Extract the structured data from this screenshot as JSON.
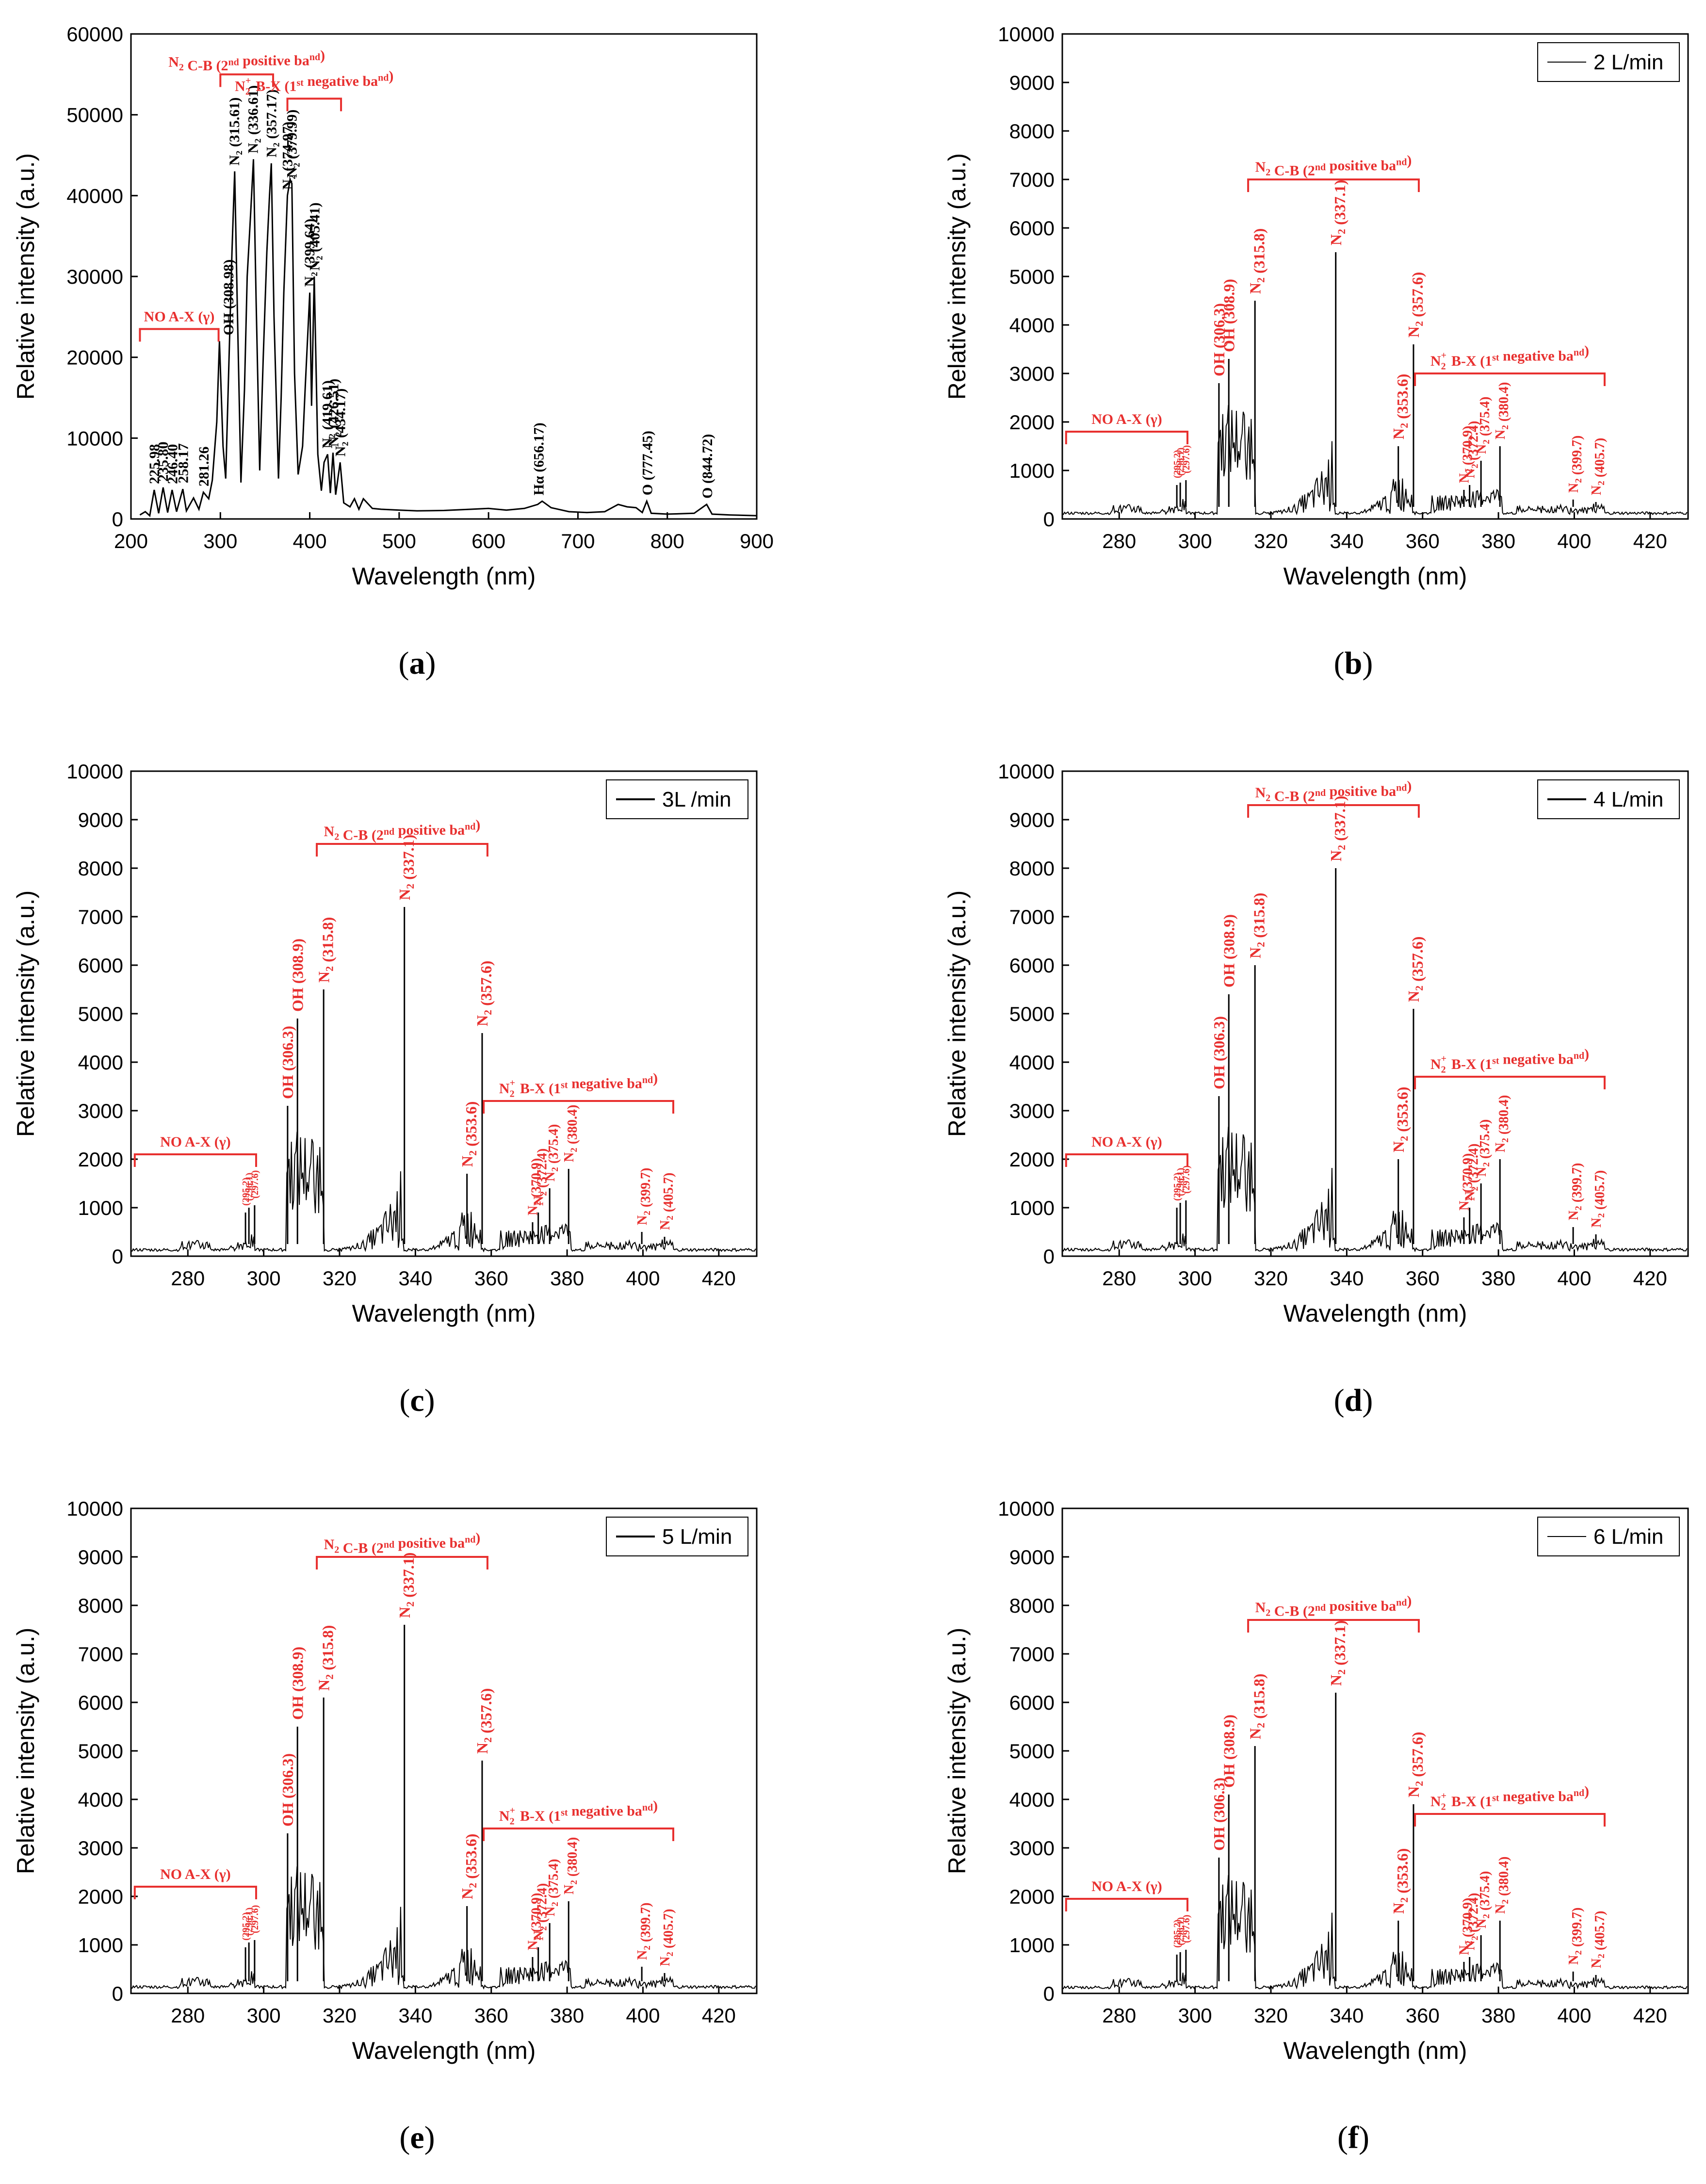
{
  "chart_data": [
    {
      "type": "line",
      "panel": "a",
      "xlabel": "Wavelength (nm)",
      "ylabel": "Relative intensity (a.u.)",
      "xlim": [
        200,
        900
      ],
      "ylim": [
        0,
        60000
      ],
      "xticks": [
        200,
        300,
        400,
        500,
        600,
        700,
        800,
        900
      ],
      "yticks": [
        0,
        10000,
        20000,
        30000,
        40000,
        50000,
        60000
      ],
      "legend": "",
      "series": [
        {
          "name": "full spectrum",
          "points": [
            [
              210,
              500
            ],
            [
              216,
              900
            ],
            [
              221,
              400
            ],
            [
              226,
              3600
            ],
            [
              231,
              700
            ],
            [
              236,
              3900
            ],
            [
              241,
              800
            ],
            [
              246,
              3600
            ],
            [
              251,
              900
            ],
            [
              258,
              3700
            ],
            [
              262,
              1000
            ],
            [
              270,
              2600
            ],
            [
              276,
              1200
            ],
            [
              281,
              3300
            ],
            [
              287,
              2500
            ],
            [
              291,
              4800
            ],
            [
              296,
              12000
            ],
            [
              299,
              22000
            ],
            [
              303,
              9000
            ],
            [
              306,
              5000
            ],
            [
              310,
              21000
            ],
            [
              313,
              33000
            ],
            [
              316,
              43000
            ],
            [
              319,
              26000
            ],
            [
              323,
              4500
            ],
            [
              327,
              16000
            ],
            [
              330,
              30000
            ],
            [
              334,
              38000
            ],
            [
              337,
              44500
            ],
            [
              340,
              27000
            ],
            [
              344,
              6000
            ],
            [
              348,
              20000
            ],
            [
              352,
              33000
            ],
            [
              355,
              40000
            ],
            [
              357,
              44000
            ],
            [
              360,
              25000
            ],
            [
              365,
              5000
            ],
            [
              368,
              15000
            ],
            [
              371,
              28000
            ],
            [
              375,
              40000
            ],
            [
              378,
              42000
            ],
            [
              380,
              41500
            ],
            [
              383,
              18000
            ],
            [
              387,
              5500
            ],
            [
              392,
              9000
            ],
            [
              395,
              16500
            ],
            [
              400,
              28000
            ],
            [
              402,
              14000
            ],
            [
              405,
              30000
            ],
            [
              409,
              8000
            ],
            [
              413,
              3500
            ],
            [
              416,
              7000
            ],
            [
              420,
              8000
            ],
            [
              423,
              3200
            ],
            [
              426,
              8200
            ],
            [
              429,
              3000
            ],
            [
              434,
              7000
            ],
            [
              438,
              2000
            ],
            [
              445,
              1500
            ],
            [
              450,
              2500
            ],
            [
              455,
              1200
            ],
            [
              460,
              2500
            ],
            [
              470,
              1300
            ],
            [
              480,
              1200
            ],
            [
              500,
              1100
            ],
            [
              520,
              1000
            ],
            [
              550,
              1050
            ],
            [
              580,
              1200
            ],
            [
              600,
              1300
            ],
            [
              620,
              1100
            ],
            [
              640,
              1300
            ],
            [
              655,
              1800
            ],
            [
              660,
              2200
            ],
            [
              670,
              1400
            ],
            [
              690,
              900
            ],
            [
              710,
              800
            ],
            [
              730,
              900
            ],
            [
              745,
              1800
            ],
            [
              755,
              1500
            ],
            [
              765,
              1400
            ],
            [
              772,
              800
            ],
            [
              777,
              2200
            ],
            [
              782,
              700
            ],
            [
              800,
              600
            ],
            [
              830,
              700
            ],
            [
              844,
              1800
            ],
            [
              850,
              600
            ],
            [
              870,
              500
            ],
            [
              900,
              400
            ]
          ]
        }
      ],
      "peak_labels": [
        {
          "text": "225.98",
          "x": 226,
          "y": 3600
        },
        {
          "text": "235.80",
          "x": 235.8,
          "y": 3900
        },
        {
          "text": "246.40",
          "x": 246.4,
          "y": 3600
        },
        {
          "text": "258.17",
          "x": 258.2,
          "y": 3700
        },
        {
          "text": "281.26",
          "x": 281.3,
          "y": 3300
        },
        {
          "text": "OH (308.98)",
          "x": 309,
          "y": 22000
        },
        {
          "text": "N₂ (315.61)",
          "x": 315.6,
          "y": 43000
        },
        {
          "text": "N₂ (336.61)",
          "x": 336.6,
          "y": 44500
        },
        {
          "text": "N₂ (357.17)",
          "x": 357.2,
          "y": 44000
        },
        {
          "text": "N₂ (374.97)",
          "x": 375,
          "y": 40000
        },
        {
          "text": "N₂ (379.99)",
          "x": 380,
          "y": 41500
        },
        {
          "text": "N₂ (399.64)",
          "x": 399.6,
          "y": 28000
        },
        {
          "text": "N₂ (405.41)",
          "x": 405.4,
          "y": 30000
        },
        {
          "text": "N₂ (419.61)",
          "x": 419.6,
          "y": 8000
        },
        {
          "text": "N₂ (426.51)",
          "x": 426.5,
          "y": 8200
        },
        {
          "text": "N₂ (434.17)",
          "x": 434.2,
          "y": 7000
        },
        {
          "text": "Hα (656.17)",
          "x": 656.2,
          "y": 2200
        },
        {
          "text": "O (777.45)",
          "x": 777.5,
          "y": 2200
        },
        {
          "text": "O (844.72)",
          "x": 844.7,
          "y": 1800
        }
      ],
      "annotations": [
        {
          "text": "NO A-X (γ)",
          "x0": 210,
          "x1": 298,
          "y": 23500
        },
        {
          "text": "N₂ C-B (2nd positive band)",
          "x0": 300,
          "x1": 359,
          "y": 55000
        },
        {
          "text": "N₂⁺ B-X (1st negative band)",
          "x0": 375,
          "x1": 435,
          "y": 52000
        }
      ]
    },
    {
      "type": "line",
      "panel": "b",
      "legend": "2 L/min",
      "label_mode": "compact",
      "xlabel": "Wavelength (nm)",
      "ylabel": "Relative intensity (a.u.)",
      "xlim": [
        265,
        430
      ],
      "ylim": [
        0,
        10000
      ],
      "xticks": [
        280,
        300,
        320,
        340,
        360,
        380,
        400,
        420
      ],
      "yticks": [
        0,
        1000,
        2000,
        3000,
        4000,
        5000,
        6000,
        7000,
        8000,
        9000,
        10000
      ],
      "peaks": {
        "p295": 700,
        "p296": 750,
        "p297": 800,
        "p306": 2800,
        "p309": 3300,
        "p316": 4500,
        "p337": 5500,
        "p354": 1500,
        "p358": 3600,
        "p371": 600,
        "p372": 700,
        "p375": 1200,
        "p380": 1500,
        "p400": 400,
        "p406": 350
      },
      "annotations": [
        {
          "text": "NO A-X (γ)",
          "x0": 266,
          "x1": 298,
          "y": 1800
        },
        {
          "text": "N₂ C-B (2nd positive band)",
          "x0": 314,
          "x1": 359,
          "y": 7000
        },
        {
          "text": "N₂⁺ B-X (1st negative band)",
          "x0": 358,
          "x1": 408,
          "y": 3000
        }
      ]
    },
    {
      "type": "line",
      "panel": "c",
      "legend": "3L /min",
      "label_mode": "full",
      "xlabel": "Wavelength (nm)",
      "ylabel": "Relative intensity (a.u.)",
      "xlim": [
        265,
        430
      ],
      "ylim": [
        0,
        10000
      ],
      "xticks": [
        280,
        300,
        320,
        340,
        360,
        380,
        400,
        420
      ],
      "yticks": [
        0,
        1000,
        2000,
        3000,
        4000,
        5000,
        6000,
        7000,
        8000,
        9000,
        10000
      ],
      "peaks": {
        "p295": 900,
        "p296": 1000,
        "p297": 1050,
        "p306": 3100,
        "p309": 4900,
        "p316": 5500,
        "p337": 7200,
        "p354": 1700,
        "p358": 4600,
        "p371": 700,
        "p372": 900,
        "p375": 1400,
        "p380": 1800,
        "p400": 500,
        "p406": 400
      },
      "annotations": [
        {
          "text": "NO A-X (γ)",
          "x0": 266,
          "x1": 298,
          "y": 2100
        },
        {
          "text": "N₂ C-B (2nd positive band)",
          "x0": 314,
          "x1": 359,
          "y": 8500
        },
        {
          "text": "N₂⁺ B-X (1st negative band)",
          "x0": 358,
          "x1": 408,
          "y": 3200
        }
      ]
    },
    {
      "type": "line",
      "panel": "d",
      "legend": "4 L/min",
      "label_mode": "compact",
      "xlabel": "Wavelength (nm)",
      "ylabel": "Relative intensity (a.u.)",
      "xlim": [
        265,
        430
      ],
      "ylim": [
        0,
        10000
      ],
      "xticks": [
        280,
        300,
        320,
        340,
        360,
        380,
        400,
        420
      ],
      "yticks": [
        0,
        1000,
        2000,
        3000,
        4000,
        5000,
        6000,
        7000,
        8000,
        9000,
        10000
      ],
      "peaks": {
        "p295": 1000,
        "p296": 1100,
        "p297": 1150,
        "p306": 3300,
        "p309": 5400,
        "p316": 6000,
        "p337": 8000,
        "p354": 2000,
        "p358": 5100,
        "p371": 800,
        "p372": 1000,
        "p375": 1500,
        "p380": 2000,
        "p400": 600,
        "p406": 450
      },
      "annotations": [
        {
          "text": "NO A-X (γ)",
          "x0": 266,
          "x1": 298,
          "y": 2100
        },
        {
          "text": "N₂ C-B (2nd positive band)",
          "x0": 314,
          "x1": 359,
          "y": 9300
        },
        {
          "text": "N₂⁺ B-X (1st negative band)",
          "x0": 358,
          "x1": 408,
          "y": 3700
        }
      ]
    },
    {
      "type": "line",
      "panel": "e",
      "legend": "5 L/min",
      "label_mode": "full",
      "xlabel": "Wavelength (nm)",
      "ylabel": "Relative intensity (a.u.)",
      "xlim": [
        265,
        430
      ],
      "ylim": [
        0,
        10000
      ],
      "xticks": [
        280,
        300,
        320,
        340,
        360,
        380,
        400,
        420
      ],
      "yticks": [
        0,
        1000,
        2000,
        3000,
        4000,
        5000,
        6000,
        7000,
        8000,
        9000,
        10000
      ],
      "peaks": {
        "p295": 950,
        "p296": 1050,
        "p297": 1100,
        "p306": 3300,
        "p309": 5500,
        "p316": 6100,
        "p337": 7600,
        "p354": 1800,
        "p358": 4800,
        "p371": 750,
        "p372": 950,
        "p375": 1450,
        "p380": 1900,
        "p400": 550,
        "p406": 420
      },
      "annotations": [
        {
          "text": "NO A-X (γ)",
          "x0": 266,
          "x1": 298,
          "y": 2200
        },
        {
          "text": "N₂ C-B (2nd positive band)",
          "x0": 314,
          "x1": 359,
          "y": 9000
        },
        {
          "text": "N₂⁺ B-X (1st negative band)",
          "x0": 358,
          "x1": 408,
          "y": 3400
        }
      ]
    },
    {
      "type": "line",
      "panel": "f",
      "legend": "6 L/min",
      "label_mode": "compact",
      "xlabel": "Wavelength (nm)",
      "ylabel": "Relative intensity (a.u.)",
      "xlim": [
        265,
        430
      ],
      "ylim": [
        0,
        10000
      ],
      "xticks": [
        280,
        300,
        320,
        340,
        360,
        380,
        400,
        420
      ],
      "yticks": [
        0,
        1000,
        2000,
        3000,
        4000,
        5000,
        6000,
        7000,
        8000,
        9000,
        10000
      ],
      "peaks": {
        "p295": 800,
        "p296": 850,
        "p297": 900,
        "p306": 2800,
        "p309": 4100,
        "p316": 5100,
        "p337": 6200,
        "p354": 1500,
        "p358": 3900,
        "p371": 650,
        "p372": 750,
        "p375": 1200,
        "p380": 1500,
        "p400": 450,
        "p406": 380
      },
      "annotations": [
        {
          "text": "NO A-X (γ)",
          "x0": 266,
          "x1": 298,
          "y": 1950
        },
        {
          "text": "N₂ C-B (2nd positive band)",
          "x0": 314,
          "x1": 359,
          "y": 7700
        },
        {
          "text": "N₂⁺ B-X (1st negative band)",
          "x0": 358,
          "x1": 408,
          "y": 3700
        }
      ]
    }
  ],
  "zoom_labels": [
    {
      "key": "p295",
      "x": 295.2,
      "compact": "(295.2)",
      "full": "(295.2)",
      "kind": "tiny"
    },
    {
      "key": "p296",
      "x": 296.1,
      "compact": "(296.1)",
      "full": "(296.1)",
      "kind": "tiny"
    },
    {
      "key": "p297",
      "x": 297.6,
      "compact": "(297.6)",
      "full": "(297.6)",
      "kind": "tiny"
    },
    {
      "key": "p306",
      "x": 306.3,
      "compact": "OH (306.3)",
      "full": "OH (306.3)",
      "kind": "big"
    },
    {
      "key": "p309",
      "x": 308.9,
      "compact": "OH (308.9)",
      "full": "OH (308.9)",
      "kind": "big"
    },
    {
      "key": "p316",
      "x": 315.8,
      "compact": "N₂ (315.8)",
      "full": "N₂ (315.8)",
      "kind": "big"
    },
    {
      "key": "p337",
      "x": 337.1,
      "compact": "N₂ (337.1)",
      "full": "N₂ (337.1)",
      "kind": "big"
    },
    {
      "key": "p354",
      "x": 353.6,
      "compact": "N₂ (353.6)",
      "full": "N₂ (353.6)",
      "kind": "big"
    },
    {
      "key": "p358",
      "x": 357.6,
      "compact": "N₂ (357.6)",
      "full": "N₂ (357.6)",
      "kind": "big"
    },
    {
      "key": "p371",
      "x": 370.9,
      "compact": "N₂ (370.9)",
      "full": "N₂ (370.9)",
      "kind": "mid"
    },
    {
      "key": "p372",
      "x": 372.4,
      "compact": "N₂ (372.4)",
      "full": "N₂ (372.4)",
      "kind": "mid"
    },
    {
      "key": "p375",
      "x": 375.4,
      "compact": "N₂ (375.4)",
      "full": "N₂ (375.4)",
      "kind": "mid"
    },
    {
      "key": "p380",
      "x": 380.4,
      "compact": "N₂ (380.4)",
      "full": "N₂ (380.4)",
      "kind": "mid"
    },
    {
      "key": "p400",
      "x": 399.7,
      "compact": "N₂ (399.7)",
      "full": "N₂ (399.7)",
      "kind": "mid"
    },
    {
      "key": "p406",
      "x": 405.7,
      "compact": "N₂ (405.7)",
      "full": "N₂ (405.7)",
      "kind": "mid"
    }
  ],
  "captions": {
    "a": "a",
    "b": "b",
    "c": "c",
    "d": "d",
    "e": "e",
    "f": "f"
  },
  "colors": {
    "line": "#000000",
    "annotation": "#e8302f",
    "axis": "#000000"
  }
}
